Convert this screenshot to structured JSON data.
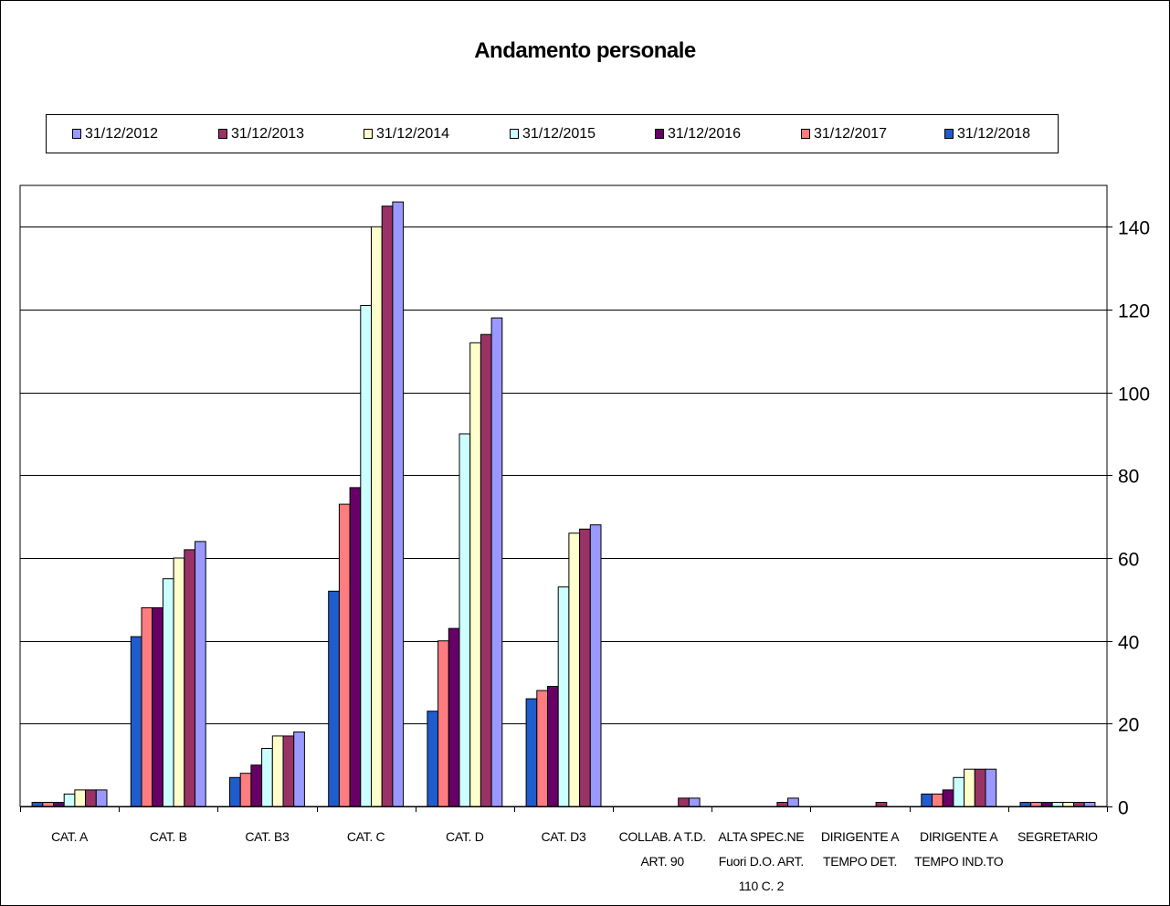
{
  "chart_data": {
    "type": "bar",
    "title": "Andamento personale",
    "categories": [
      "CAT. A",
      "CAT. B",
      "CAT. B3",
      "CAT. C",
      "CAT. D",
      "CAT. D3",
      "COLLAB. A T.D.\nART. 90",
      "ALTA SPEC.NE\nFuori D.O. ART.\n110 C. 2",
      "DIRIGENTE A\nTEMPO DET.",
      "DIRIGENTE A\nTEMPO IND.TO",
      "SEGRETARIO"
    ],
    "series": [
      {
        "name": "31/12/2018",
        "color": "#1f5ccc",
        "values": [
          1,
          41,
          7,
          52,
          23,
          26,
          0,
          0,
          0,
          3,
          1
        ]
      },
      {
        "name": "31/12/2017",
        "color": "#ff7c80",
        "values": [
          1,
          48,
          8,
          73,
          40,
          28,
          0,
          0,
          0,
          3,
          1
        ]
      },
      {
        "name": "31/12/2016",
        "color": "#660066",
        "values": [
          1,
          48,
          10,
          77,
          43,
          29,
          0,
          0,
          0,
          4,
          1
        ]
      },
      {
        "name": "31/12/2015",
        "color": "#ccffff",
        "values": [
          3,
          55,
          14,
          121,
          90,
          53,
          0,
          0,
          0,
          7,
          1
        ]
      },
      {
        "name": "31/12/2014",
        "color": "#ffffcc",
        "values": [
          4,
          60,
          17,
          140,
          112,
          66,
          0,
          0,
          0,
          9,
          1
        ]
      },
      {
        "name": "31/12/2013",
        "color": "#993366",
        "values": [
          4,
          62,
          17,
          145,
          114,
          67,
          2,
          1,
          1,
          9,
          1
        ]
      },
      {
        "name": "31/12/2012",
        "color": "#9999ff",
        "values": [
          4,
          64,
          18,
          146,
          118,
          68,
          2,
          2,
          0,
          9,
          1
        ]
      }
    ],
    "legend_order": [
      "31/12/2012",
      "31/12/2013",
      "31/12/2014",
      "31/12/2015",
      "31/12/2016",
      "31/12/2017",
      "31/12/2018"
    ],
    "yaxis_ticks": [
      0,
      20,
      40,
      60,
      80,
      100,
      120,
      140
    ],
    "ylim": [
      0,
      150
    ],
    "yaxis_position": "right",
    "grid": true,
    "legend_position": "top"
  }
}
